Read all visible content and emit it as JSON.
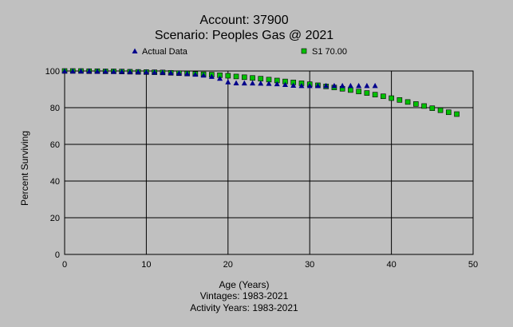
{
  "chart_data": {
    "type": "scatter",
    "title": "Account: 37900",
    "subtitle": "Scenario: Peoples Gas @ 2021",
    "xlabel": "Age (Years)",
    "ylabel": "Percent Surviving",
    "footer_lines": [
      "Vintages: 1983-2021",
      "Activity Years: 1983-2021"
    ],
    "xlim": [
      0,
      50
    ],
    "ylim": [
      0,
      100
    ],
    "x_ticks": [
      0,
      10,
      20,
      30,
      40,
      50
    ],
    "y_ticks": [
      0,
      20,
      40,
      60,
      80,
      100
    ],
    "grid": true,
    "legend_position": "top",
    "series": [
      {
        "name": "Actual Data",
        "marker": "triangle",
        "color": "#00008b",
        "x": [
          0,
          1,
          2,
          3,
          4,
          5,
          6,
          7,
          8,
          9,
          10,
          11,
          12,
          13,
          14,
          15,
          16,
          17,
          18,
          19,
          20,
          21,
          22,
          23,
          24,
          25,
          26,
          27,
          28,
          29,
          30,
          31,
          32,
          33,
          34,
          35,
          36,
          37,
          38
        ],
        "y": [
          100,
          100,
          100,
          100,
          99.9,
          99.9,
          99.8,
          99.8,
          99.7,
          99.6,
          99.5,
          99.4,
          99.3,
          99.1,
          98.9,
          98.6,
          98.2,
          97.7,
          97,
          96,
          94,
          93.5,
          93.4,
          93.4,
          93.3,
          93.2,
          93,
          92.6,
          92.2,
          92,
          92,
          92,
          92,
          92,
          92,
          92,
          92,
          92,
          92
        ]
      },
      {
        "name": "S1 70.00",
        "marker": "square",
        "color": "#00c000",
        "x": [
          0,
          1,
          2,
          3,
          4,
          5,
          6,
          7,
          8,
          9,
          10,
          11,
          12,
          13,
          14,
          15,
          16,
          17,
          18,
          19,
          20,
          21,
          22,
          23,
          24,
          25,
          26,
          27,
          28,
          29,
          30,
          31,
          32,
          33,
          34,
          35,
          36,
          37,
          38,
          39,
          40,
          41,
          42,
          43,
          44,
          45,
          46,
          47,
          48
        ],
        "y": [
          100,
          100,
          100,
          99.9,
          99.9,
          99.8,
          99.8,
          99.7,
          99.6,
          99.5,
          99.4,
          99.3,
          99.2,
          99,
          98.8,
          98.6,
          98.4,
          98.2,
          98,
          97.7,
          97.4,
          97,
          96.6,
          96.2,
          95.8,
          95.3,
          94.8,
          94.3,
          93.8,
          93.3,
          92.8,
          92.2,
          91.6,
          91,
          90.3,
          89.6,
          88.8,
          88,
          87.1,
          86.2,
          85.2,
          84.2,
          83.1,
          82,
          80.9,
          79.7,
          78.6,
          77.5,
          76.5
        ]
      }
    ]
  }
}
